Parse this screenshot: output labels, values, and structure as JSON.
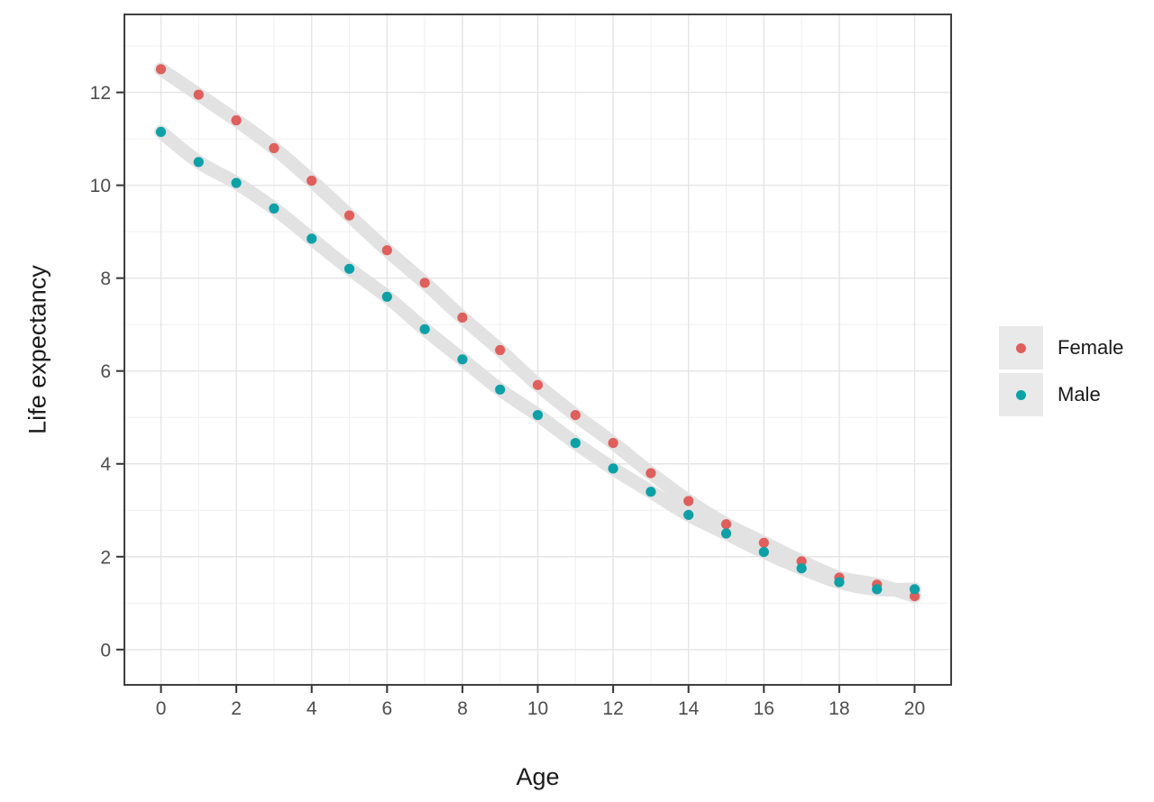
{
  "chart_data": {
    "type": "scatter",
    "title": "",
    "xlabel": "Age",
    "ylabel": "Life expectancy",
    "x": [
      0,
      1,
      2,
      3,
      4,
      5,
      6,
      7,
      8,
      9,
      10,
      11,
      12,
      13,
      14,
      15,
      16,
      17,
      18,
      19,
      20
    ],
    "series": [
      {
        "name": "Female",
        "color": "#DE5F5C",
        "values": [
          12.5,
          11.95,
          11.4,
          10.8,
          10.1,
          9.35,
          8.6,
          7.9,
          7.15,
          6.45,
          5.7,
          5.05,
          4.45,
          3.8,
          3.2,
          2.7,
          2.3,
          1.9,
          1.55,
          1.4,
          1.15
        ]
      },
      {
        "name": "Male",
        "color": "#0BA1A7",
        "values": [
          11.15,
          10.5,
          10.05,
          9.5,
          8.85,
          8.2,
          7.6,
          6.9,
          6.25,
          5.6,
          5.05,
          4.45,
          3.9,
          3.4,
          2.9,
          2.5,
          2.1,
          1.75,
          1.45,
          1.3,
          1.3
        ]
      }
    ],
    "x_ticks": [
      0,
      2,
      4,
      6,
      8,
      10,
      12,
      14,
      16,
      18,
      20
    ],
    "x_minor_ticks": [
      1,
      3,
      5,
      7,
      9,
      11,
      13,
      15,
      17,
      19
    ],
    "y_ticks": [
      0,
      2,
      4,
      6,
      8,
      10,
      12
    ],
    "y_minor_ticks": [
      1,
      3,
      5,
      7,
      9,
      11,
      13
    ],
    "xlim": [
      -0.97,
      20.97
    ],
    "ylim": [
      -0.76,
      13.68
    ],
    "grid": true,
    "legend_position": "right",
    "smoother": {
      "color": "#E2E2E2",
      "width": 15
    },
    "style": {
      "panel_background": "#FFFFFF",
      "panel_border": "#3F3F3F",
      "grid_major": "#E6E6E6",
      "grid_minor": "#EFEFEF",
      "tick_mark": "#333333",
      "tick_label_color": "#4D4D4D",
      "title_color": "#1A1A1A",
      "legend_key_fill": "#E9E9E9",
      "point_radius": 5.6
    }
  }
}
